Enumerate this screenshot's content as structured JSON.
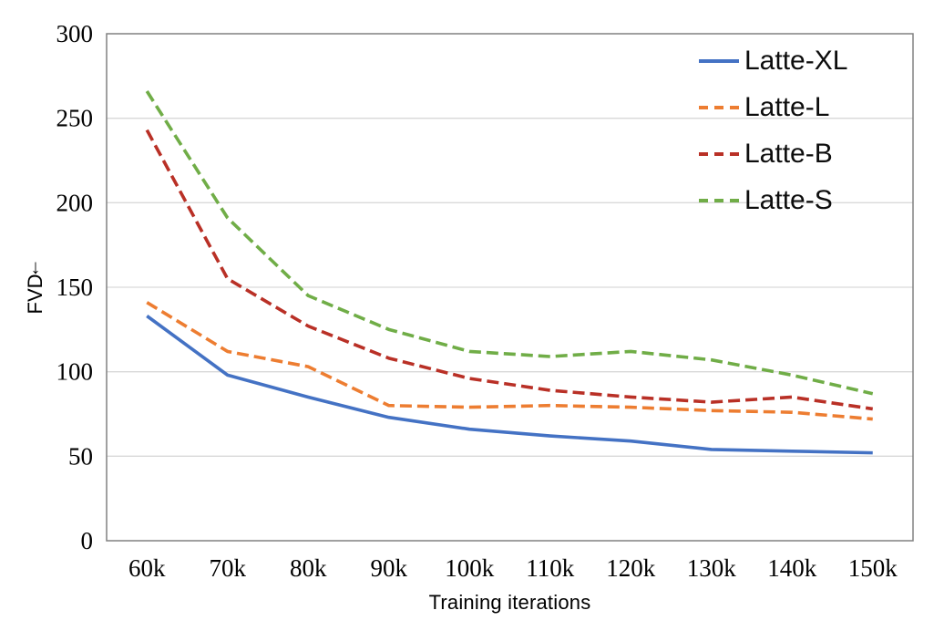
{
  "chart_data": {
    "type": "line",
    "title": "",
    "xlabel": "Training iterations",
    "ylabel": "FVD",
    "ylabel_arrow": "↓",
    "categories": [
      "60k",
      "70k",
      "80k",
      "90k",
      "100k",
      "110k",
      "120k",
      "130k",
      "140k",
      "150k"
    ],
    "yticks": [
      "0",
      "50",
      "100",
      "150",
      "200",
      "250",
      "300"
    ],
    "ylim": [
      0,
      300
    ],
    "ytick_step": 50,
    "grid": true,
    "grid_color": "#d9d9d9",
    "border_color": "#808080",
    "legend_position": "top-right-inside",
    "series": [
      {
        "name": "Latte-XL",
        "color": "#4472c4",
        "dash": "solid",
        "values": [
          133,
          98,
          85,
          73,
          66,
          62,
          59,
          54,
          53,
          52
        ]
      },
      {
        "name": "Latte-L",
        "color": "#ed7d31",
        "dash": "dashed",
        "values": [
          141,
          112,
          103,
          80,
          79,
          80,
          79,
          77,
          76,
          72
        ]
      },
      {
        "name": "Latte-B",
        "color": "#b93026",
        "dash": "dashed",
        "values": [
          243,
          155,
          127,
          108,
          96,
          89,
          85,
          82,
          85,
          78
        ]
      },
      {
        "name": "Latte-S",
        "color": "#70ad47",
        "dash": "dashed",
        "values": [
          266,
          191,
          145,
          125,
          112,
          109,
          112,
          107,
          98,
          87
        ]
      }
    ]
  }
}
